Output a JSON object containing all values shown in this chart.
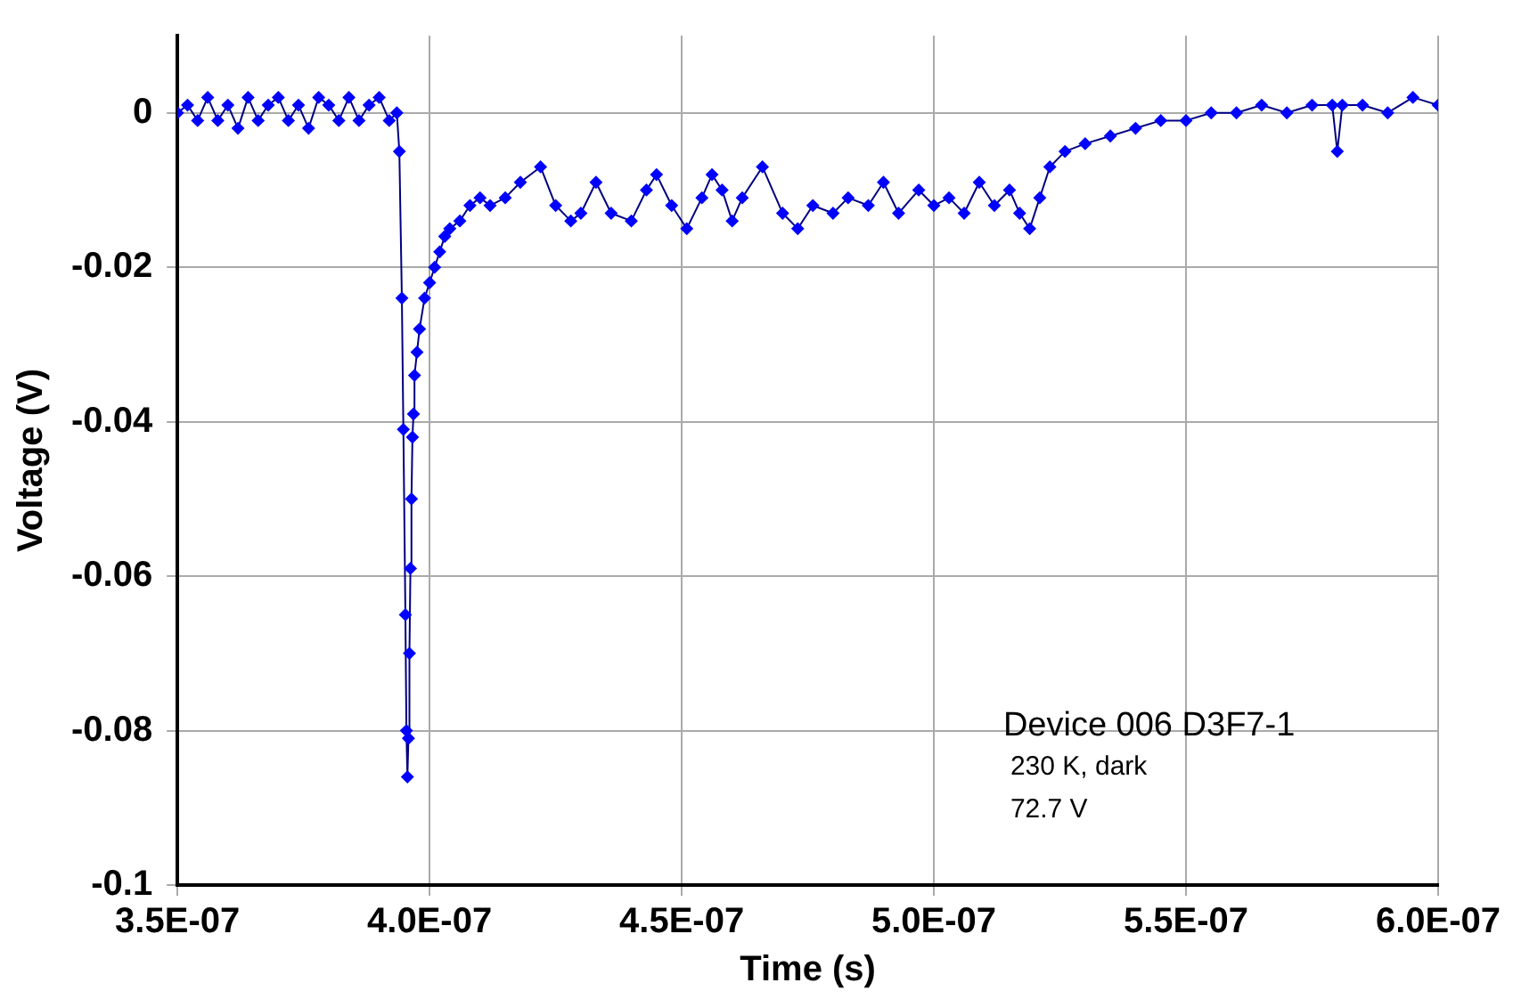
{
  "chart_data": {
    "type": "line",
    "xlabel": "Time (s)",
    "ylabel": "Voltage (V)",
    "annotations": [
      "Device 006 D3F7-1",
      "230 K, dark",
      "72.7 V"
    ],
    "xlim": [
      3.5e-07,
      6e-07
    ],
    "xticks": [
      {
        "value": 3.5e-07,
        "label": "3.5E-07"
      },
      {
        "value": 4e-07,
        "label": "4.0E-07"
      },
      {
        "value": 4.5e-07,
        "label": "4.5E-07"
      },
      {
        "value": 5e-07,
        "label": "5.0E-07"
      },
      {
        "value": 5.5e-07,
        "label": "5.5E-07"
      },
      {
        "value": 6e-07,
        "label": "6.0E-07"
      }
    ],
    "ylim": [
      -0.1,
      0.01
    ],
    "yticks": [
      {
        "value": 0,
        "label": "0"
      },
      -0.02,
      -0.04,
      -0.06,
      -0.08,
      -0.1
    ],
    "grid": true,
    "legend": false,
    "marker": "diamond",
    "line_style": "solid",
    "series": [
      {
        "color": "#0000ff",
        "x": [
          3.5e-07,
          3.52e-07,
          3.54e-07,
          3.56e-07,
          3.58e-07,
          3.6e-07,
          3.62e-07,
          3.64e-07,
          3.66e-07,
          3.68e-07,
          3.7e-07,
          3.72e-07,
          3.74e-07,
          3.76e-07,
          3.78e-07,
          3.8e-07,
          3.82e-07,
          3.84e-07,
          3.86e-07,
          3.88e-07,
          3.9e-07,
          3.92e-07,
          3.935e-07,
          3.94e-07,
          3.945e-07,
          3.948e-07,
          3.952e-07,
          3.954e-07,
          3.956e-07,
          3.958e-07,
          3.96e-07,
          3.962e-07,
          3.964e-07,
          3.966e-07,
          3.968e-07,
          3.97e-07,
          3.975e-07,
          3.98e-07,
          3.99e-07,
          4e-07,
          4.01e-07,
          4.02e-07,
          4.03e-07,
          4.04e-07,
          4.06e-07,
          4.08e-07,
          4.1e-07,
          4.12e-07,
          4.15e-07,
          4.18e-07,
          4.22e-07,
          4.25e-07,
          4.28e-07,
          4.3e-07,
          4.33e-07,
          4.36e-07,
          4.4e-07,
          4.43e-07,
          4.45e-07,
          4.48e-07,
          4.51e-07,
          4.54e-07,
          4.56e-07,
          4.58e-07,
          4.6e-07,
          4.62e-07,
          4.66e-07,
          4.7e-07,
          4.73e-07,
          4.76e-07,
          4.8e-07,
          4.83e-07,
          4.87e-07,
          4.9e-07,
          4.93e-07,
          4.97e-07,
          5e-07,
          5.03e-07,
          5.06e-07,
          5.09e-07,
          5.12e-07,
          5.15e-07,
          5.17e-07,
          5.19e-07,
          5.21e-07,
          5.23e-07,
          5.26e-07,
          5.3e-07,
          5.35e-07,
          5.4e-07,
          5.45e-07,
          5.5e-07,
          5.55e-07,
          5.6e-07,
          5.65e-07,
          5.7e-07,
          5.75e-07,
          5.79e-07,
          5.8e-07,
          5.81e-07,
          5.85e-07,
          5.9e-07,
          5.95e-07,
          6e-07
        ],
        "values": [
          0,
          0.001,
          -0.001,
          0.002,
          -0.001,
          0.001,
          -0.002,
          0.002,
          -0.001,
          0.001,
          0.002,
          -0.001,
          0.001,
          -0.002,
          0.002,
          0.001,
          -0.001,
          0.002,
          -0.001,
          0.001,
          0.002,
          -0.001,
          0,
          -0.005,
          -0.024,
          -0.041,
          -0.065,
          -0.08,
          -0.086,
          -0.081,
          -0.07,
          -0.059,
          -0.05,
          -0.042,
          -0.039,
          -0.034,
          -0.031,
          -0.028,
          -0.024,
          -0.022,
          -0.02,
          -0.018,
          -0.016,
          -0.015,
          -0.014,
          -0.012,
          -0.011,
          -0.012,
          -0.011,
          -0.009,
          -0.007,
          -0.012,
          -0.014,
          -0.013,
          -0.009,
          -0.013,
          -0.014,
          -0.01,
          -0.008,
          -0.012,
          -0.015,
          -0.011,
          -0.008,
          -0.01,
          -0.014,
          -0.011,
          -0.007,
          -0.013,
          -0.015,
          -0.012,
          -0.013,
          -0.011,
          -0.012,
          -0.009,
          -0.013,
          -0.01,
          -0.012,
          -0.011,
          -0.013,
          -0.009,
          -0.012,
          -0.01,
          -0.013,
          -0.015,
          -0.011,
          -0.007,
          -0.005,
          -0.004,
          -0.003,
          -0.002,
          -0.001,
          -0.001,
          0,
          0,
          0.001,
          0,
          0.001,
          0.001,
          -0.005,
          0.001,
          0.001,
          0,
          0.002,
          0.001
        ]
      }
    ]
  }
}
